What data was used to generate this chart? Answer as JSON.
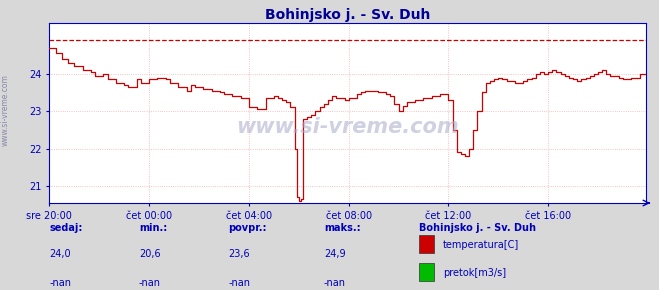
{
  "title": "Bohinjsko j. - Sv. Duh",
  "title_color": "#000099",
  "bg_color": "#d8d8d8",
  "plot_bg_color": "#ffffff",
  "grid_color": "#ffaaaa",
  "line_color": "#cc0000",
  "dashed_line_color": "#cc0000",
  "axis_color": "#0000bb",
  "text_color": "#0000bb",
  "watermark": "www.si-vreme.com",
  "ylim": [
    20.55,
    25.35
  ],
  "yticks": [
    21,
    22,
    23,
    24
  ],
  "xlabel_times": [
    "sre 20:00",
    "čet 00:00",
    "čet 04:00",
    "čet 08:00",
    "čet 12:00",
    "čet 16:00"
  ],
  "xtick_positions": [
    0,
    48,
    96,
    144,
    192,
    240
  ],
  "total_points": 288,
  "dashed_y": 24.9,
  "legend_title": "Bohinjsko j. - Sv. Duh",
  "legend_items": [
    {
      "label": "temperatura[C]",
      "color": "#cc0000"
    },
    {
      "label": "pretok[m3/s]",
      "color": "#00bb00"
    }
  ],
  "footer_labels": [
    "sedaj:",
    "min.:",
    "povpr.:",
    "maks.:"
  ],
  "footer_values_temp": [
    "24,0",
    "20,6",
    "23,6",
    "24,9"
  ],
  "footer_values_flow": [
    "-nan",
    "-nan",
    "-nan",
    "-nan"
  ]
}
